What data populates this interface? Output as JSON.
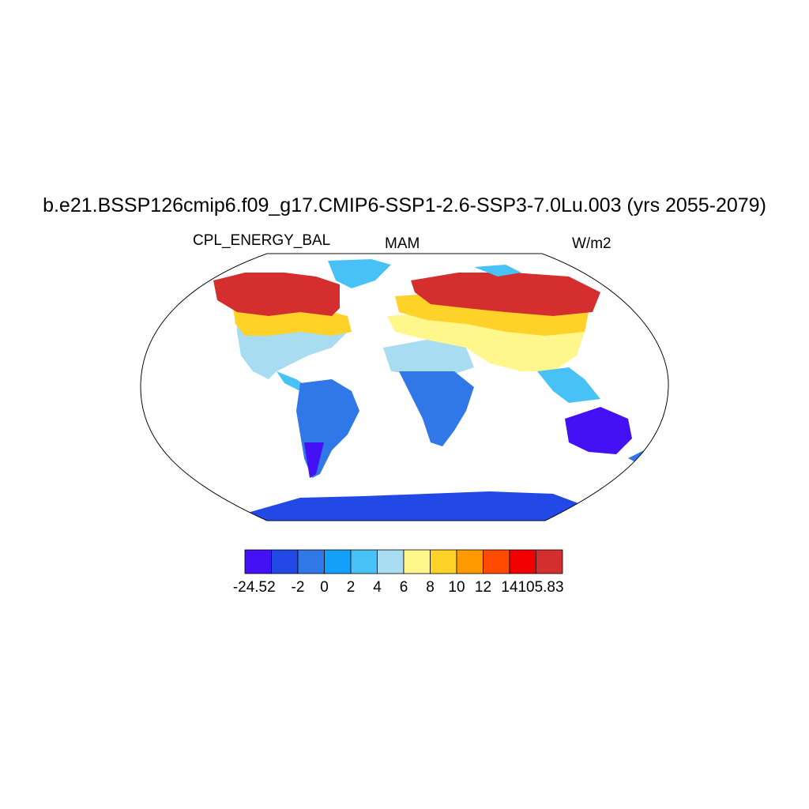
{
  "title": "b.e21.BSSP126cmip6.f09_g17.CMIP6-SSP1-2.6-SSP3-7.0Lu.003 (yrs 2055-2079)",
  "left_label": "CPL_ENERGY_BAL",
  "center_label": "MAM",
  "right_label": "W/m2",
  "colorbar": {
    "colors": [
      "#4410f4",
      "#2248e6",
      "#3077e8",
      "#14a0f8",
      "#48c2f6",
      "#a8dcf0",
      "#fff68c",
      "#ffd22a",
      "#ff9a00",
      "#ff4a00",
      "#f00000",
      "#d42e2e"
    ],
    "labels": [
      "-24.52",
      "-2",
      "0",
      "2",
      "4",
      "6",
      "8",
      "10",
      "12",
      "14",
      "105.83"
    ]
  },
  "legend_items": [
    {
      "name": "min",
      "label": "-24.52"
    },
    {
      "name": "max",
      "label": "105.83"
    }
  ]
}
